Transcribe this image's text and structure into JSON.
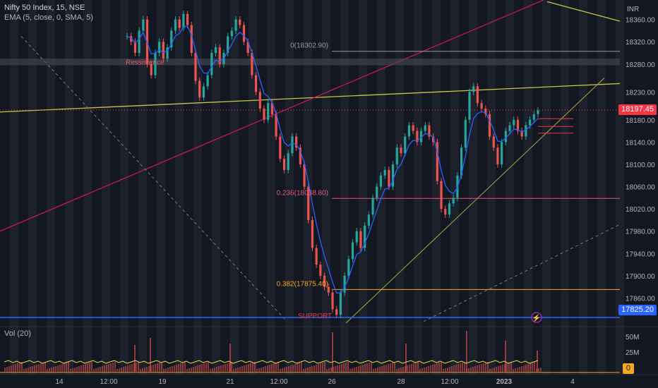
{
  "header": {
    "title": "Nifty 50 Index, 15, NSE",
    "indicator": "EMA (5, close, 0, SMA, 5)",
    "volume_indicator": "Vol (20)"
  },
  "price_axis": {
    "currency": "INR",
    "ticks": [
      "18360.00",
      "18320.00",
      "18280.00",
      "18230.00",
      "18180.00",
      "18140.00",
      "18100.00",
      "18060.00",
      "18020.00",
      "17980.00",
      "17940.00",
      "17900.00",
      "17860.00"
    ],
    "last_price": "18197.45",
    "support_price": "17825.20"
  },
  "volume_axis": {
    "ticks": [
      "50M",
      "25M"
    ],
    "current_value": "0"
  },
  "time_axis": {
    "ticks": [
      "14",
      "12:00",
      "19",
      "21",
      "12:00",
      "26",
      "28",
      "12:00",
      "2023",
      "4"
    ]
  },
  "annotations": {
    "resistance": "Ressistence",
    "support": "SUPPORT",
    "fib_0": "0(18302.90)",
    "fib_0236": "0.236(18038.80)",
    "fib_0382": "0.382(17875.40)"
  },
  "colors": {
    "background": "#131722",
    "up_candle": "#26a69a",
    "down_candle": "#ef5350",
    "ema_line": "#2962ff",
    "support_line": "#2962ff",
    "last_price_badge": "#f23645",
    "trend_yellow": "#c9c24a",
    "trend_red": "#c2185b",
    "fib_orange": "#f5a623"
  },
  "chart_data": {
    "type": "candlestick",
    "title": "Nifty 50 Index, 15, NSE",
    "ylim": [
      17810,
      18395
    ],
    "overlay": "EMA (5, close, 0, SMA, 5)",
    "closes": [
      18330,
      18320,
      18300,
      18340,
      18360,
      18280,
      18260,
      18300,
      18320,
      18290,
      18310,
      18340,
      18360,
      18345,
      18370,
      18350,
      18300,
      18250,
      18220,
      18240,
      18260,
      18300,
      18310,
      18280,
      18300,
      18330,
      18340,
      18360,
      18350,
      18320,
      18300,
      18260,
      18230,
      18200,
      18180,
      18210,
      18190,
      18150,
      18110,
      18090,
      18120,
      18150,
      18130,
      18100,
      18060,
      18000,
      17950,
      17920,
      17900,
      17880,
      17870,
      17840,
      17830,
      17870,
      17900,
      17930,
      17960,
      17980,
      17950,
      17990,
      18010,
      18040,
      18060,
      18080,
      18090,
      18060,
      18100,
      18130,
      18120,
      18150,
      18170,
      18160,
      18140,
      18160,
      18170,
      18150,
      18140,
      18070,
      18020,
      18010,
      18030,
      18040,
      18080,
      18130,
      18180,
      18230,
      18240,
      18210,
      18200,
      18190,
      18150,
      18130,
      18100,
      18140,
      18160,
      18170,
      18180,
      18160,
      18150,
      18170,
      18180,
      18190,
      18197
    ],
    "volume_spikes": [
      "21",
      "26",
      "28",
      "2023"
    ],
    "levels": [
      {
        "name": "Ressistence",
        "value": 18284
      },
      {
        "name": "SUPPORT",
        "value": 17825.2
      },
      {
        "name": "0(18302.90)",
        "value": 18302.9
      },
      {
        "name": "0.236(18038.80)",
        "value": 18038.8
      },
      {
        "name": "0.382(17875.40)",
        "value": 17875.4
      }
    ]
  }
}
